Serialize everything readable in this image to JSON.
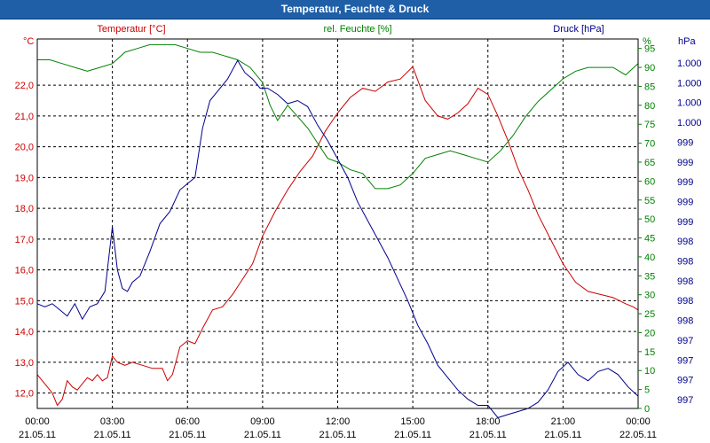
{
  "window": {
    "title": "Temperatur, Feuchte & Druck"
  },
  "chart_data": {
    "type": "line",
    "title": "Temperatur, Feuchte & Druck",
    "xlabel": "",
    "x_ticks": [
      {
        "time": "00:00",
        "date": "21.05.11"
      },
      {
        "time": "03:00",
        "date": "21.05.11"
      },
      {
        "time": "06:00",
        "date": "21.05.11"
      },
      {
        "time": "09:00",
        "date": "21.05.11"
      },
      {
        "time": "12:00",
        "date": "21.05.11"
      },
      {
        "time": "15:00",
        "date": "21.05.11"
      },
      {
        "time": "18:00",
        "date": "21.05.11"
      },
      {
        "time": "21:00",
        "date": "21.05.11"
      },
      {
        "time": "00:00",
        "date": "22.05.11"
      }
    ],
    "xlim_hours": [
      0,
      24
    ],
    "grid": true,
    "axes": {
      "temp": {
        "title": "Temperatur [°C]",
        "unit": "°C",
        "ylim": [
          11.5,
          23.5
        ],
        "ticks": [
          "12,0",
          "13,0",
          "14,0",
          "15,0",
          "16,0",
          "17,0",
          "18,0",
          "19,0",
          "20,0",
          "21,0",
          "22,0"
        ],
        "tick_values": [
          12,
          13,
          14,
          15,
          16,
          17,
          18,
          19,
          20,
          21,
          22
        ],
        "color": "#cc0000"
      },
      "hum": {
        "title": "rel. Feuchte [%]",
        "unit": "%",
        "ylim": [
          0,
          97.5
        ],
        "ticks": [
          "0",
          "5",
          "10",
          "15",
          "20",
          "25",
          "30",
          "35",
          "40",
          "45",
          "50",
          "55",
          "60",
          "65",
          "70",
          "75",
          "80",
          "85",
          "90",
          "95"
        ],
        "tick_values": [
          0,
          5,
          10,
          15,
          20,
          25,
          30,
          35,
          40,
          45,
          50,
          55,
          60,
          65,
          70,
          75,
          80,
          85,
          90,
          95
        ],
        "color": "#008000"
      },
      "press": {
        "title": "Druck [hPa]",
        "unit": "hPa",
        "ticks": [
          "1.000",
          "1.000",
          "1.000",
          "1.000",
          "999",
          "999",
          "999",
          "999",
          "999",
          "998",
          "998",
          "998",
          "998",
          "998",
          "997",
          "997",
          "997",
          "997"
        ],
        "color": "#00008b"
      }
    },
    "series": [
      {
        "name": "Temperatur [°C]",
        "axis": "temp",
        "color": "#cc0000",
        "x": [
          0,
          0.3,
          0.6,
          0.8,
          1.0,
          1.2,
          1.4,
          1.6,
          1.8,
          2.0,
          2.2,
          2.4,
          2.6,
          2.8,
          3.0,
          3.2,
          3.5,
          3.8,
          4.2,
          4.6,
          5.0,
          5.2,
          5.4,
          5.7,
          6.0,
          6.3,
          6.6,
          7.0,
          7.4,
          7.8,
          8.2,
          8.6,
          9.0,
          9.5,
          10.0,
          10.5,
          11.0,
          11.5,
          12.0,
          12.5,
          13.0,
          13.5,
          14.0,
          14.5,
          15.0,
          15.5,
          16.0,
          16.4,
          16.8,
          17.2,
          17.6,
          18.0,
          18.4,
          18.8,
          19.2,
          19.6,
          20.0,
          20.5,
          21.0,
          21.5,
          22.0,
          22.5,
          23.0,
          23.5,
          23.8,
          24.0
        ],
        "y": [
          12.6,
          12.3,
          12.0,
          11.6,
          11.8,
          12.4,
          12.2,
          12.1,
          12.3,
          12.5,
          12.4,
          12.6,
          12.4,
          12.5,
          13.2,
          13.0,
          12.9,
          13.0,
          12.9,
          12.8,
          12.8,
          12.4,
          12.6,
          13.5,
          13.7,
          13.6,
          14.1,
          14.7,
          14.8,
          15.2,
          15.7,
          16.2,
          17.1,
          17.9,
          18.6,
          19.2,
          19.7,
          20.5,
          21.1,
          21.6,
          21.9,
          21.8,
          22.1,
          22.2,
          22.6,
          21.5,
          21.0,
          20.9,
          21.1,
          21.4,
          21.9,
          21.7,
          21.0,
          20.2,
          19.3,
          18.6,
          17.8,
          17.0,
          16.2,
          15.6,
          15.3,
          15.2,
          15.1,
          14.9,
          14.8,
          14.7
        ]
      },
      {
        "name": "rel. Feuchte [%]",
        "axis": "hum",
        "color": "#008000",
        "x": [
          0,
          0.5,
          1.0,
          1.5,
          2.0,
          2.5,
          3.0,
          3.5,
          4.0,
          4.5,
          5.0,
          5.5,
          6.0,
          6.5,
          7.0,
          7.5,
          8.0,
          8.5,
          9.0,
          9.3,
          9.6,
          10.0,
          10.4,
          10.8,
          11.2,
          11.6,
          12.0,
          12.5,
          13.0,
          13.5,
          14.0,
          14.5,
          15.0,
          15.5,
          16.0,
          16.5,
          17.0,
          17.5,
          18.0,
          18.5,
          19.0,
          19.5,
          20.0,
          20.5,
          21.0,
          21.5,
          22.0,
          22.5,
          23.0,
          23.5,
          24.0
        ],
        "y": [
          92,
          92,
          91,
          90,
          89,
          90,
          91,
          94,
          95,
          96,
          96,
          96,
          95,
          94,
          94,
          93,
          92,
          90,
          86,
          80,
          76,
          80,
          77,
          74,
          70,
          66,
          65,
          63,
          62,
          58,
          58,
          59,
          62,
          66,
          67,
          68,
          67,
          66,
          65,
          68,
          72,
          77,
          81,
          84,
          87,
          89,
          90,
          90,
          90,
          88,
          91
        ]
      },
      {
        "name": "Druck [hPa]",
        "axis": "press",
        "color": "#00008b",
        "note": "values shown on the original's plot scale, tick labels as printed",
        "x": [
          0,
          0.3,
          0.6,
          0.9,
          1.2,
          1.5,
          1.8,
          2.1,
          2.4,
          2.7,
          3.0,
          3.2,
          3.4,
          3.6,
          3.8,
          4.1,
          4.5,
          4.9,
          5.3,
          5.7,
          6.0,
          6.3,
          6.6,
          6.9,
          7.2,
          7.6,
          8.0,
          8.3,
          8.6,
          8.9,
          9.2,
          9.6,
          10.0,
          10.4,
          10.8,
          11.2,
          11.6,
          12.0,
          12.4,
          12.8,
          13.2,
          13.6,
          14.0,
          14.4,
          14.8,
          15.2,
          15.6,
          16.0,
          16.4,
          16.8,
          17.2,
          17.6,
          18.0,
          18.4,
          18.8,
          19.2,
          19.6,
          20.0,
          20.4,
          20.8,
          21.2,
          21.6,
          22.0,
          22.4,
          22.8,
          23.2,
          23.6,
          24.0
        ],
        "y": [
          14.9,
          14.8,
          14.9,
          14.7,
          14.5,
          14.9,
          14.4,
          14.8,
          14.9,
          15.3,
          17.4,
          16.0,
          15.4,
          15.3,
          15.6,
          15.8,
          16.6,
          17.5,
          17.9,
          18.6,
          18.8,
          19.0,
          20.6,
          21.5,
          21.8,
          22.2,
          22.8,
          22.4,
          22.2,
          21.9,
          21.9,
          21.7,
          21.4,
          21.5,
          21.3,
          20.7,
          20.2,
          19.6,
          19.0,
          18.2,
          17.6,
          17.0,
          16.4,
          15.7,
          15.0,
          14.2,
          13.6,
          12.9,
          12.5,
          12.1,
          11.8,
          11.6,
          11.6,
          11.2,
          11.3,
          11.4,
          11.5,
          11.7,
          12.1,
          12.7,
          13.0,
          12.6,
          12.4,
          12.7,
          12.8,
          12.6,
          12.2,
          11.9
        ]
      }
    ]
  }
}
